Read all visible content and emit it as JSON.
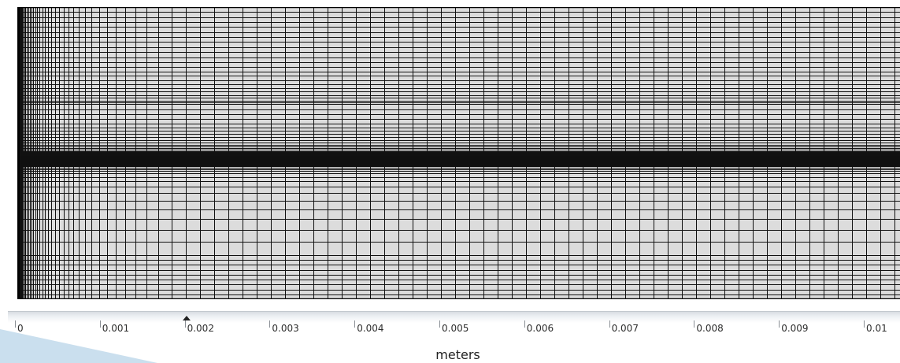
{
  "ruler": {
    "ticks": [
      "0",
      "0.001",
      "0.002",
      "0.003",
      "0.004",
      "0.005",
      "0.006",
      "0.007",
      "0.008",
      "0.009",
      "0.01"
    ],
    "units": "meters",
    "marker_value": 0.00185
  },
  "mesh": {
    "background_color": "#dcdcdc",
    "line_color": "#111111",
    "border_color": "#000000"
  },
  "colors": {
    "ruler_text": "#2d2d2d",
    "decor_accent": "#b8d4e8"
  }
}
